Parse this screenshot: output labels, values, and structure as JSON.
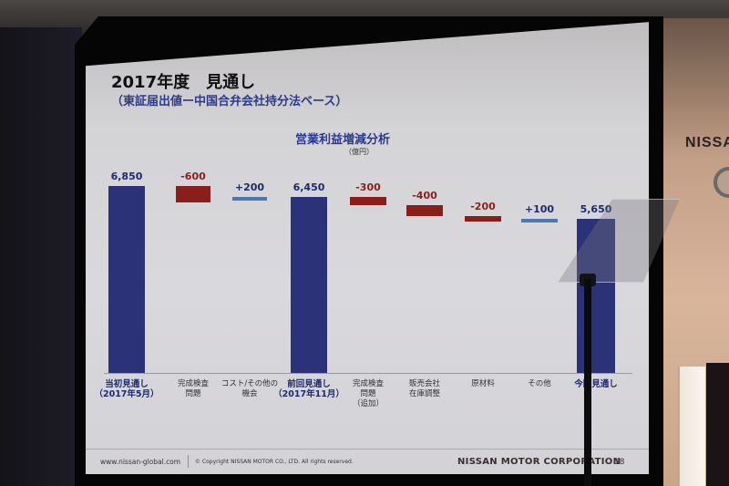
{
  "slide": {
    "title": "2017年度　見通し",
    "subtitle": "（東証届出値ー中国合弁会社持分法ベース）",
    "page_number": "18",
    "footer": {
      "url": "www.nissan-global.com",
      "copyright": "© Copyright NISSAN MOTOR CO., LTD. All rights reserved.",
      "corporation": "NISSAN MOTOR CORPORATION"
    }
  },
  "background": {
    "wall_brand": "NISSA",
    "logo_text": "NISSAN"
  },
  "colors": {
    "total_bar": "#2b3278",
    "negative_bar": "#8a1e1a",
    "positive_bar": "#4a78b0",
    "total_label": "#1d2a6c",
    "negative_label": "#8a1e1a"
  },
  "chart_data": {
    "type": "bar",
    "subtype": "waterfall",
    "title": "営業利益増減分析",
    "unit": "（億円）",
    "xlabel": "",
    "ylabel": "",
    "ylim": [
      0,
      7000
    ],
    "grid": false,
    "legend": false,
    "categories": [
      "当初見通し\n（2017年5月）",
      "完成検査\n問題",
      "コスト/その他の\n機会",
      "前回見通し\n（2017年11月）",
      "完成検査\n問題\n（追加）",
      "販売会社\n在庫調整",
      "原材料",
      "その他",
      "今回見通し"
    ],
    "values": [
      6850,
      -600,
      200,
      6450,
      -300,
      -400,
      -200,
      100,
      5650
    ],
    "labels": [
      "6,850",
      "-600",
      "+200",
      "6,450",
      "-300",
      "-400",
      "-200",
      "+100",
      "5,650"
    ],
    "kinds": [
      "total",
      "delta",
      "delta",
      "total",
      "delta",
      "delta",
      "delta",
      "delta",
      "total"
    ]
  }
}
